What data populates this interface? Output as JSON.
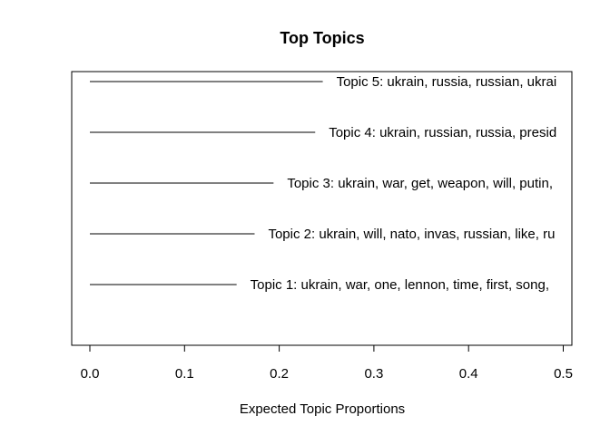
{
  "chart_data": {
    "type": "bar",
    "orientation": "horizontal",
    "title": "Top Topics",
    "xlabel": "Expected Topic Proportions",
    "ylabel": "",
    "xlim": [
      0,
      0.51
    ],
    "x_ticks": [
      0.0,
      0.1,
      0.2,
      0.3,
      0.4,
      0.5
    ],
    "x_tick_labels": [
      "0.0",
      "0.1",
      "0.2",
      "0.3",
      "0.4",
      "0.5"
    ],
    "grid": false,
    "legend": "none",
    "categories": [
      "Topic 1: ukrain, war, one, lennon, time, first, song,",
      "Topic 2: ukrain, will, nato, invas, russian, like, ru",
      "Topic 3: ukrain, war, get, weapon, will, putin,",
      "Topic 4: ukrain, russian, russia, presid",
      "Topic 5: ukrain, russia, russian, ukrai"
    ],
    "values": [
      0.155,
      0.174,
      0.194,
      0.238,
      0.246
    ],
    "colors": {
      "bar_line": "#000000",
      "axis": "#000000",
      "background": "#ffffff"
    }
  }
}
